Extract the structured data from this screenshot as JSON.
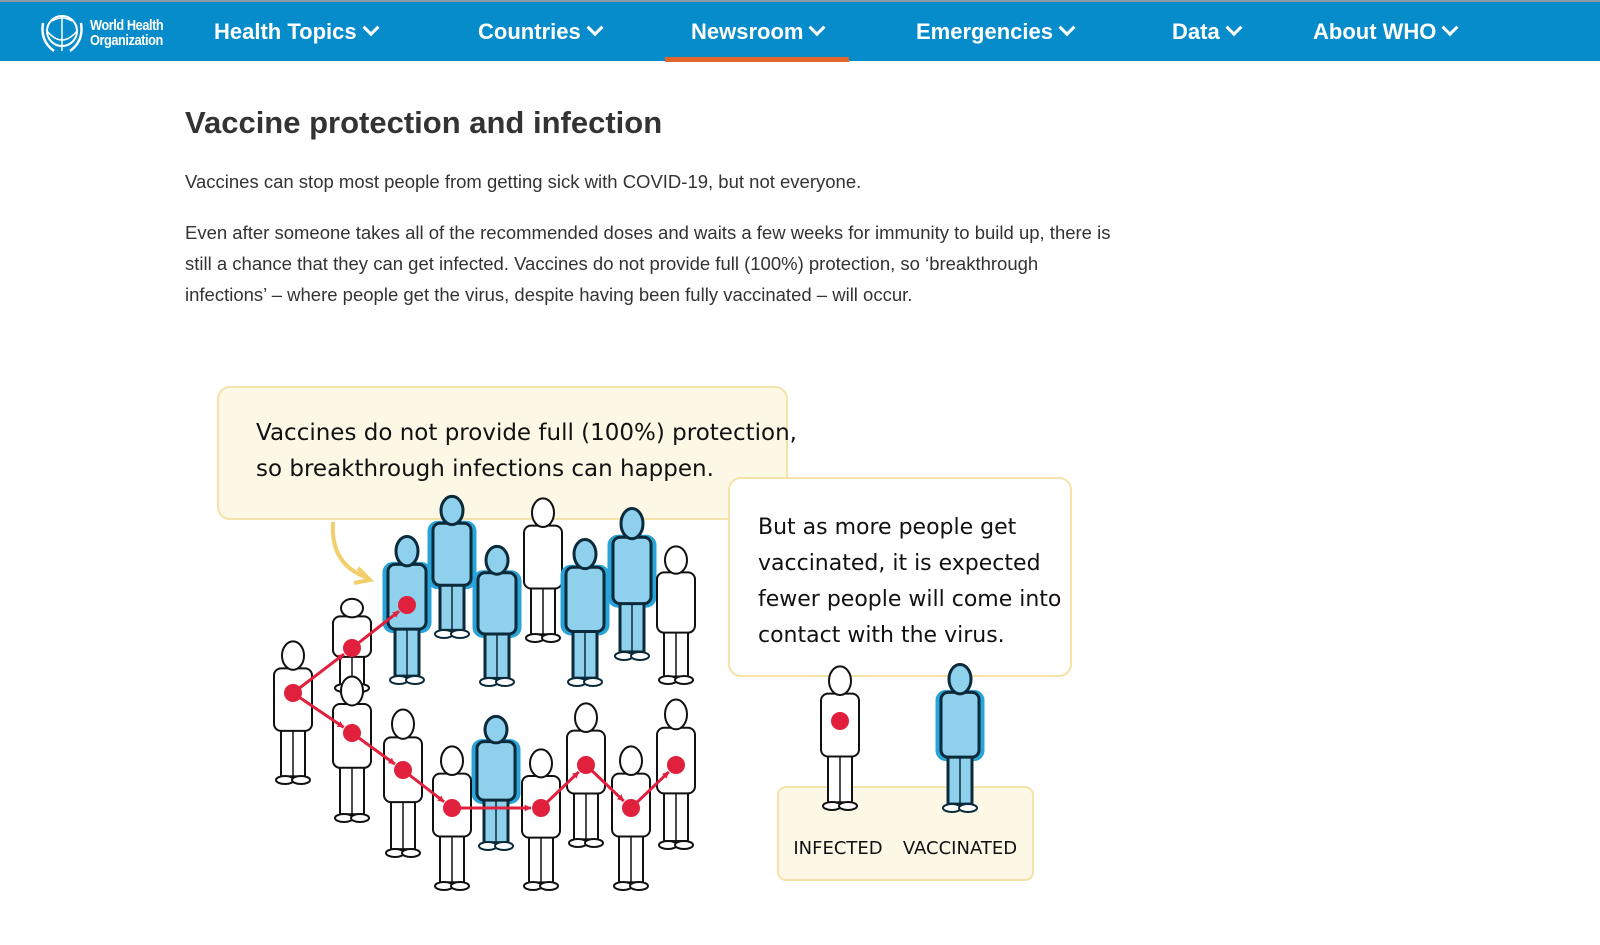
{
  "nav": {
    "logo_text": [
      "World Health",
      "Organization"
    ],
    "items": [
      {
        "label": "Health Topics",
        "active": false
      },
      {
        "label": "Countries",
        "active": false
      },
      {
        "label": "Newsroom",
        "active": true
      },
      {
        "label": "Emergencies",
        "active": false
      },
      {
        "label": "Data",
        "active": false
      },
      {
        "label": "About WHO",
        "active": false
      }
    ],
    "colors": {
      "bar": "#078ccb",
      "active_underline": "#e0662c"
    }
  },
  "article": {
    "title": "Vaccine protection and infection",
    "paragraphs": [
      "Vaccines can stop most people from getting sick with COVID-19, but not everyone.",
      "Even after someone takes all of the recommended doses and waits a few weeks for immunity to build up, there is still a chance that they can get infected. Vaccines do not provide full (100%) protection, so ‘breakthrough infections’ – where people get the virus, despite having been fully vaccinated – will occur."
    ]
  },
  "illustration": {
    "bubble1": [
      "Vaccines do not provide full (100%) protection,",
      "so breakthrough infections can happen."
    ],
    "bubble2": [
      "But as more people get",
      "vaccinated, it is expected",
      "fewer people will come into",
      "contact with the virus."
    ],
    "legend": {
      "infected": "INFECTED",
      "vaccinated": "VACCINATED"
    },
    "colors": {
      "vaccinated": "#8fd0ec",
      "infection": "#e0203c",
      "bubble": "#fdf8e6",
      "bubble_border": "#f5e2a8"
    }
  }
}
